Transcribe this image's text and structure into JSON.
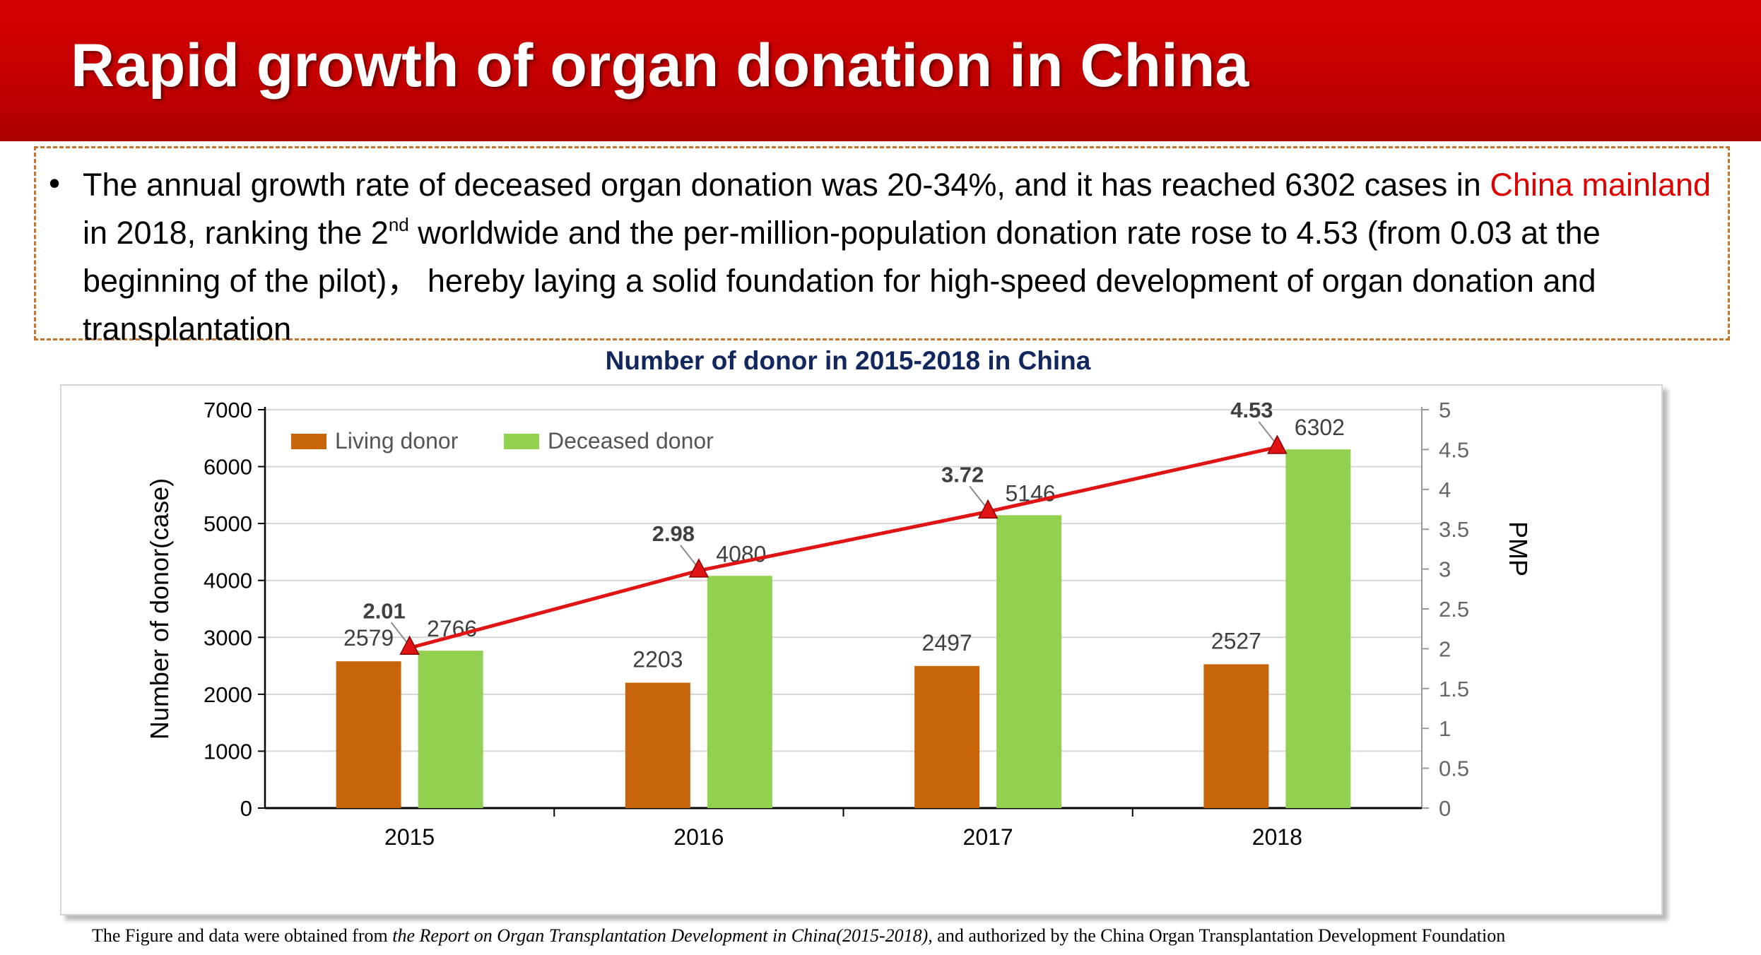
{
  "header": {
    "title": "Rapid growth of organ donation in China"
  },
  "summary": {
    "bullet": "•",
    "part1": "The annual growth rate of deceased organ donation was 20-34%, and it has reached 6302 cases in ",
    "highlight": "China mainland",
    "part2": " in 2018, ranking the 2",
    "superscript": "nd",
    "part3": "  worldwide  and  the per-million-population donation rate rose to 4.53 (from 0.03 at the beginning of the pilot)，  hereby laying a solid foundation for high-speed development of organ donation and transplantation",
    "highlight_color": "#e00000"
  },
  "chart_data": {
    "type": "bar",
    "title": "Number of donor in 2015-2018 in China",
    "categories": [
      "2015",
      "2016",
      "2017",
      "2018"
    ],
    "series": [
      {
        "name": "Living donor",
        "type": "bar",
        "axis": "left",
        "color": "#c8640a",
        "values": [
          2579,
          2203,
          2497,
          2527
        ]
      },
      {
        "name": "Deceased donor",
        "type": "bar",
        "axis": "left",
        "color": "#92d050",
        "values": [
          2766,
          4080,
          5146,
          6302
        ]
      },
      {
        "name": "",
        "type": "line",
        "axis": "right",
        "color": "#e01414",
        "values": [
          2.01,
          2.98,
          3.72,
          4.53
        ]
      }
    ],
    "ylabel": "Number of donor(case)",
    "ylim": [
      0,
      7000
    ],
    "yticks": [
      "0",
      "1000",
      "2000",
      "3000",
      "4000",
      "5000",
      "6000",
      "7000"
    ],
    "y2label": "PMP",
    "y2lim": [
      0,
      5
    ],
    "y2ticks": [
      "0",
      "0.5",
      "1",
      "1.5",
      "2",
      "2.5",
      "3",
      "3.5",
      "4",
      "4.5",
      "5"
    ],
    "grid": true,
    "legend_position": "top-left"
  },
  "footer": {
    "prefix": "The Figure and data were obtained from ",
    "source": "the Report on Organ Transplantation Development in China(2015-2018),",
    "suffix": " and authorized by the China Organ Transplantation Development Foundation"
  }
}
